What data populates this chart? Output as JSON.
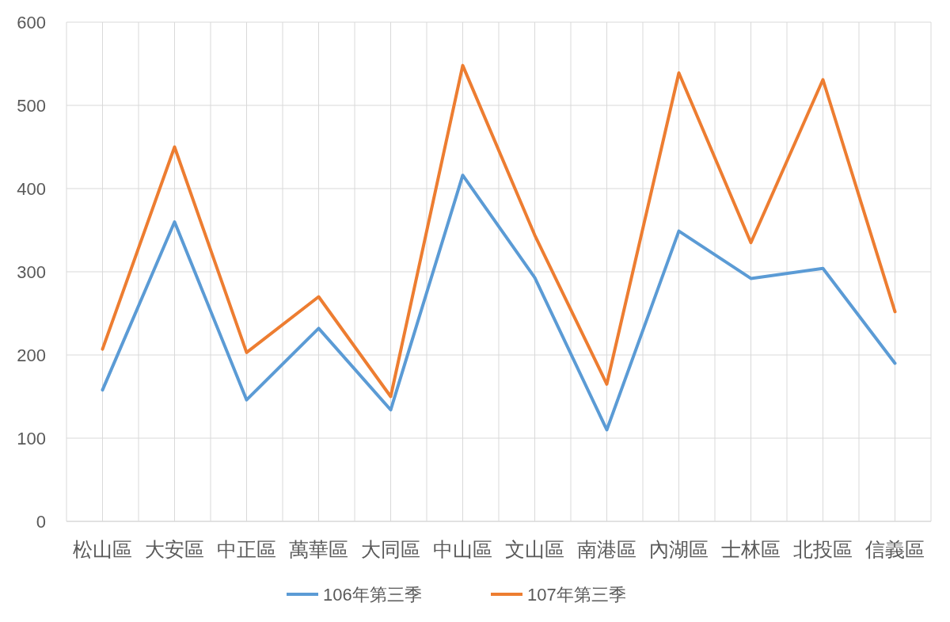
{
  "chart_data": {
    "type": "line",
    "categories": [
      "松山區",
      "大安區",
      "中正區",
      "萬華區",
      "大同區",
      "中山區",
      "文山區",
      "南港區",
      "內湖區",
      "士林區",
      "北投區",
      "信義區"
    ],
    "series": [
      {
        "name": "106年第三季",
        "color": "#5b9bd5",
        "values": [
          158,
          360,
          146,
          232,
          134,
          416,
          293,
          110,
          349,
          292,
          304,
          190
        ]
      },
      {
        "name": "107年第三季",
        "color": "#ed7d31",
        "values": [
          207,
          450,
          203,
          270,
          150,
          548,
          344,
          165,
          539,
          335,
          531,
          252
        ]
      }
    ],
    "ylim": [
      0,
      600
    ],
    "yticks": [
      0,
      100,
      200,
      300,
      400,
      500,
      600
    ],
    "grid": true,
    "legend": "bottom"
  }
}
